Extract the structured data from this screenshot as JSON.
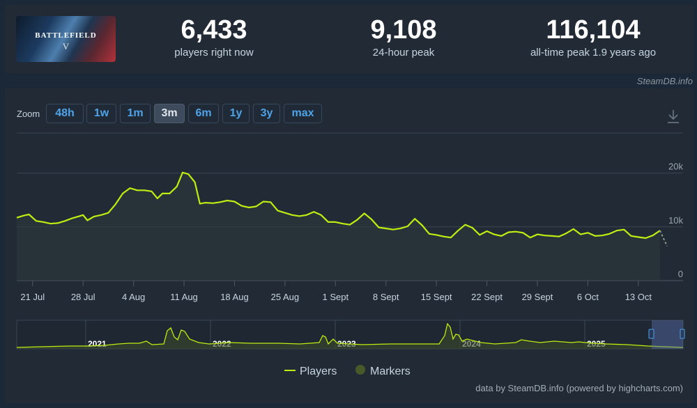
{
  "game": {
    "logo_text": "BATTLEFIELD",
    "logo_num": "V"
  },
  "stats": [
    {
      "value": "6,433",
      "label": "players right now"
    },
    {
      "value": "9,108",
      "label": "24-hour peak"
    },
    {
      "value": "116,104",
      "label": "all-time peak 1.9 years ago"
    }
  ],
  "source_credit": "SteamDB.info",
  "zoom": {
    "label": "Zoom",
    "options": [
      "48h",
      "1w",
      "1m",
      "3m",
      "6m",
      "1y",
      "3y",
      "max"
    ],
    "active": "3m"
  },
  "colors": {
    "line": "#beee11",
    "active_zoom": "#3d4b5c",
    "link": "#4fa3e8"
  },
  "chart_data": {
    "type": "line",
    "ylim": [
      0,
      25000
    ],
    "y_ticks": [
      {
        "v": 0,
        "label": "0"
      },
      {
        "v": 10000,
        "label": "10k"
      },
      {
        "v": 20000,
        "label": "20k"
      }
    ],
    "x_ticks": [
      {
        "d": 0,
        "label": "21 Jul"
      },
      {
        "d": 7,
        "label": "28 Jul"
      },
      {
        "d": 14,
        "label": "4 Aug"
      },
      {
        "d": 21,
        "label": "11 Aug"
      },
      {
        "d": 28,
        "label": "18 Aug"
      },
      {
        "d": 35,
        "label": "25 Aug"
      },
      {
        "d": 42,
        "label": "1 Sept"
      },
      {
        "d": 49,
        "label": "8 Sept"
      },
      {
        "d": 56,
        "label": "15 Sept"
      },
      {
        "d": 63,
        "label": "22 Sept"
      },
      {
        "d": 70,
        "label": "29 Sept"
      },
      {
        "d": 77,
        "label": "6 Oct"
      },
      {
        "d": 84,
        "label": "13 Oct"
      }
    ],
    "x_range": [
      -2.2,
      90.2
    ],
    "series": [
      {
        "name": "Players",
        "points": [
          [
            -2.2,
            11700
          ],
          [
            -1.2,
            12100
          ],
          [
            -0.5,
            12300
          ],
          [
            0.5,
            11100
          ],
          [
            1.5,
            10900
          ],
          [
            2.5,
            10600
          ],
          [
            3.5,
            10700
          ],
          [
            4.5,
            11100
          ],
          [
            5.5,
            11600
          ],
          [
            6.5,
            12000
          ],
          [
            7,
            12200
          ],
          [
            7.6,
            11200
          ],
          [
            8.5,
            11900
          ],
          [
            9.5,
            12200
          ],
          [
            10.5,
            12600
          ],
          [
            11.5,
            14200
          ],
          [
            12.5,
            16200
          ],
          [
            13.5,
            17200
          ],
          [
            14.5,
            16800
          ],
          [
            15.5,
            16800
          ],
          [
            16.5,
            16600
          ],
          [
            17.3,
            15300
          ],
          [
            18,
            16200
          ],
          [
            19,
            16200
          ],
          [
            20,
            17500
          ],
          [
            20.8,
            20100
          ],
          [
            21.6,
            19800
          ],
          [
            22.5,
            18300
          ],
          [
            23.2,
            14300
          ],
          [
            24,
            14500
          ],
          [
            25,
            14400
          ],
          [
            26,
            14600
          ],
          [
            27,
            14900
          ],
          [
            28,
            14700
          ],
          [
            29,
            13900
          ],
          [
            30,
            13600
          ],
          [
            31,
            13800
          ],
          [
            32,
            14700
          ],
          [
            33,
            14600
          ],
          [
            34,
            13000
          ],
          [
            35,
            12600
          ],
          [
            36,
            12200
          ],
          [
            37,
            12000
          ],
          [
            38,
            12200
          ],
          [
            39,
            12800
          ],
          [
            40,
            12200
          ],
          [
            41,
            10900
          ],
          [
            42,
            10900
          ],
          [
            43,
            10600
          ],
          [
            44,
            10400
          ],
          [
            45,
            11300
          ],
          [
            46,
            12500
          ],
          [
            47,
            11400
          ],
          [
            48,
            9900
          ],
          [
            49,
            9700
          ],
          [
            50,
            9500
          ],
          [
            51,
            9700
          ],
          [
            52,
            10100
          ],
          [
            53,
            11500
          ],
          [
            54,
            10300
          ],
          [
            55,
            8700
          ],
          [
            56,
            8500
          ],
          [
            57,
            8200
          ],
          [
            58,
            8000
          ],
          [
            59,
            9300
          ],
          [
            60,
            10400
          ],
          [
            61,
            9800
          ],
          [
            62,
            8500
          ],
          [
            63,
            9200
          ],
          [
            64,
            8600
          ],
          [
            65,
            8300
          ],
          [
            66,
            9000
          ],
          [
            67,
            9100
          ],
          [
            68,
            8900
          ],
          [
            69,
            8000
          ],
          [
            70,
            8600
          ],
          [
            71,
            8400
          ],
          [
            72,
            8300
          ],
          [
            73,
            8200
          ],
          [
            74,
            8800
          ],
          [
            75,
            9600
          ],
          [
            76,
            8600
          ],
          [
            77,
            8900
          ],
          [
            78,
            8300
          ],
          [
            79,
            8400
          ],
          [
            80,
            8700
          ],
          [
            81,
            9300
          ],
          [
            82,
            9500
          ],
          [
            83,
            8300
          ],
          [
            84,
            8100
          ],
          [
            85,
            7900
          ],
          [
            86,
            8400
          ],
          [
            87,
            9300
          ]
        ],
        "partial_tail": [
          [
            87,
            9300
          ],
          [
            87.5,
            7800
          ],
          [
            88,
            6400
          ]
        ]
      }
    ],
    "navigator": {
      "year_labels": [
        "2021",
        "2022",
        "2023",
        "2024",
        "2025"
      ]
    },
    "legend": [
      {
        "name": "Players",
        "color": "#beee11",
        "symbol": "line"
      },
      {
        "name": "Markers",
        "color": "#475a2a",
        "symbol": "circle"
      }
    ]
  },
  "footer_credit": "data by SteamDB.info (powered by highcharts.com)"
}
